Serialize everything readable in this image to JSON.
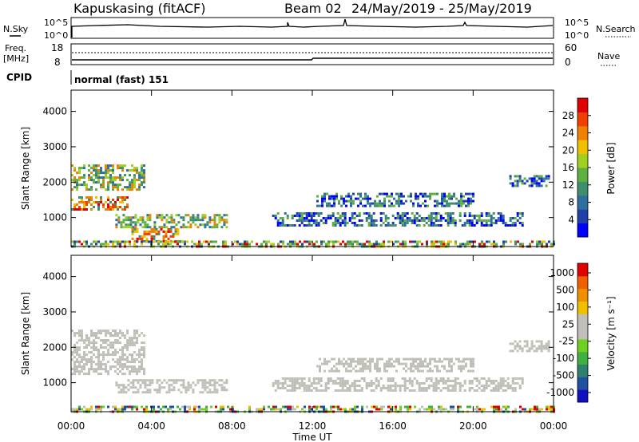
{
  "title": {
    "station": "Kapuskasing (fitACF)",
    "beam": "Beam 02",
    "dates": "24/May/2019 - 25/May/2019"
  },
  "strips": {
    "nsky_label": "N.Sky",
    "nsearch_label": "N.Search",
    "nsky_ticks": [
      "10^5",
      "10^0"
    ],
    "nsearch_ticks": [
      "10^5",
      "10^0"
    ],
    "freq_label": "Freq.",
    "freq_unit": "[MHz]",
    "freq_ticks": [
      "18",
      "8"
    ],
    "nave_label": "Nave",
    "nave_ticks": [
      "60",
      "0"
    ],
    "cpid_label": "CPID",
    "cpid_text": "normal (fast) 151"
  },
  "chart_data": [
    {
      "type": "heatmap",
      "name": "power",
      "ylabel": "Slant Range [km]",
      "xlabel": "",
      "y_ticks": [
        "1000",
        "2000",
        "3000",
        "4000"
      ],
      "ylim": [
        180,
        4600
      ],
      "x_ticks": [
        "00:00",
        "04:00",
        "08:00",
        "12:00",
        "16:00",
        "20:00",
        "00:00"
      ],
      "xlim_hours": [
        0,
        24
      ],
      "colorbar": {
        "label": "Power [dB]",
        "ticks": [
          "4",
          "8",
          "12",
          "16",
          "20",
          "24",
          "28"
        ],
        "colors": [
          "#0000ff",
          "#2040a8",
          "#2f6f9f",
          "#3f8f6f",
          "#5fb040",
          "#a0d020",
          "#f0c000",
          "#f08000",
          "#f04000",
          "#e00000"
        ]
      },
      "echo_regions": [
        {
          "t0": 0.0,
          "t1": 2.8,
          "r0": 1250,
          "r1": 1600,
          "level": "high"
        },
        {
          "t0": 0.0,
          "t1": 3.6,
          "r0": 1800,
          "r1": 2500,
          "level": "mid"
        },
        {
          "t0": 2.2,
          "t1": 7.8,
          "r0": 700,
          "r1": 1100,
          "level": "mid"
        },
        {
          "t0": 3.0,
          "t1": 5.5,
          "r0": 300,
          "r1": 700,
          "level": "high"
        },
        {
          "t0": 10.0,
          "t1": 22.5,
          "r0": 800,
          "r1": 1150,
          "level": "low"
        },
        {
          "t0": 12.2,
          "t1": 20.0,
          "r0": 1350,
          "r1": 1700,
          "level": "low"
        },
        {
          "t0": 21.8,
          "t1": 23.8,
          "r0": 1900,
          "r1": 2200,
          "level": "low"
        },
        {
          "t0": 0.0,
          "t1": 24.0,
          "r0": 180,
          "r1": 350,
          "level": "ground"
        }
      ]
    },
    {
      "type": "heatmap",
      "name": "velocity",
      "ylabel": "Slant Range [km]",
      "xlabel": "Time UT",
      "y_ticks": [
        "1000",
        "2000",
        "3000",
        "4000"
      ],
      "ylim": [
        180,
        4600
      ],
      "x_ticks": [
        "00:00",
        "04:00",
        "08:00",
        "12:00",
        "16:00",
        "20:00",
        "00:00"
      ],
      "xlim_hours": [
        0,
        24
      ],
      "colorbar": {
        "label": "Velocity [m s⁻¹]",
        "ticks": [
          "1000",
          "500",
          "100",
          "25",
          "-25",
          "-100",
          "-500",
          "-1000"
        ],
        "colors": [
          "#1010c0",
          "#2050a0",
          "#308070",
          "#40b040",
          "#70d020",
          "#c0c0b8",
          "#c0c0b8",
          "#f0c000",
          "#f09000",
          "#f06000",
          "#e00000"
        ]
      },
      "echo_regions": [
        {
          "t0": 0.0,
          "t1": 3.6,
          "r0": 1250,
          "r1": 2500,
          "level": "grey"
        },
        {
          "t0": 2.2,
          "t1": 7.8,
          "r0": 700,
          "r1": 1100,
          "level": "grey"
        },
        {
          "t0": 10.0,
          "t1": 22.5,
          "r0": 800,
          "r1": 1150,
          "level": "grey"
        },
        {
          "t0": 12.2,
          "t1": 20.0,
          "r0": 1350,
          "r1": 1700,
          "level": "grey"
        },
        {
          "t0": 21.8,
          "t1": 23.8,
          "r0": 1900,
          "r1": 2200,
          "level": "grey"
        },
        {
          "t0": 0.0,
          "t1": 24.0,
          "r0": 180,
          "r1": 350,
          "level": "ground"
        }
      ]
    }
  ]
}
